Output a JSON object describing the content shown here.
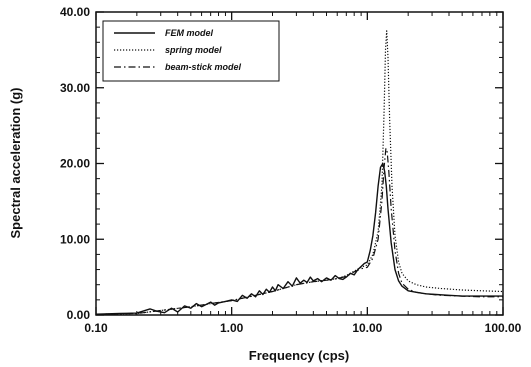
{
  "chart_data": {
    "type": "line",
    "title": "",
    "xlabel": "Frequency (cps)",
    "ylabel": "Spectral acceleration (g)",
    "xscale": "log",
    "xlim": [
      0.1,
      100
    ],
    "ylim": [
      0,
      40
    ],
    "x_ticks": [
      {
        "value": 0.1,
        "label": "0.10"
      },
      {
        "value": 1,
        "label": "1.00"
      },
      {
        "value": 10,
        "label": "10.00"
      },
      {
        "value": 100,
        "label": "100.00"
      }
    ],
    "y_ticks": [
      {
        "value": 0,
        "label": "0.00"
      },
      {
        "value": 10,
        "label": "10.00"
      },
      {
        "value": 20,
        "label": "20.00"
      },
      {
        "value": 30,
        "label": "30.00"
      },
      {
        "value": 40,
        "label": "40.00"
      }
    ],
    "grid": false,
    "legend_position": "top-left",
    "series": [
      {
        "name": "FEM model",
        "style": "solid",
        "color": "#111111",
        "x": [
          0.1,
          0.15,
          0.2,
          0.25,
          0.28,
          0.32,
          0.36,
          0.4,
          0.45,
          0.5,
          0.55,
          0.6,
          0.65,
          0.7,
          0.75,
          0.8,
          0.9,
          1.0,
          1.1,
          1.2,
          1.3,
          1.4,
          1.5,
          1.6,
          1.7,
          1.8,
          1.9,
          2.0,
          2.1,
          2.2,
          2.4,
          2.6,
          2.8,
          3.0,
          3.2,
          3.4,
          3.6,
          3.8,
          4.0,
          4.3,
          4.6,
          5.0,
          5.4,
          5.8,
          6.2,
          6.6,
          7.0,
          7.5,
          8.0,
          8.5,
          9.0,
          9.5,
          10.0,
          10.5,
          11.0,
          11.5,
          12.0,
          12.5,
          13.0,
          13.4,
          13.8,
          14.2,
          15.0,
          16.0,
          17.0,
          18.0,
          20.0,
          23.0,
          27.0,
          32.0,
          40.0,
          50.0,
          65.0,
          80.0,
          100.0
        ],
        "values": [
          0.1,
          0.2,
          0.25,
          0.8,
          0.5,
          0.3,
          0.9,
          0.4,
          1.2,
          0.9,
          1.5,
          1.1,
          1.4,
          1.7,
          1.3,
          1.6,
          1.8,
          2.0,
          1.8,
          2.6,
          2.2,
          2.8,
          2.4,
          3.2,
          2.7,
          3.4,
          3.0,
          3.7,
          3.2,
          4.0,
          3.5,
          4.4,
          3.8,
          4.9,
          4.2,
          4.6,
          4.3,
          5.0,
          4.5,
          4.8,
          4.4,
          4.9,
          4.6,
          5.2,
          4.8,
          4.7,
          5.0,
          5.5,
          5.3,
          6.0,
          6.4,
          6.8,
          7.0,
          8.5,
          10.5,
          13.5,
          17.0,
          19.5,
          20.0,
          19.0,
          17.0,
          14.0,
          9.5,
          6.0,
          4.5,
          3.8,
          3.2,
          3.0,
          2.8,
          2.7,
          2.6,
          2.5,
          2.5,
          2.5,
          2.5
        ]
      },
      {
        "name": "spring model",
        "style": "dotted",
        "color": "#111111",
        "x": [
          0.1,
          0.2,
          0.3,
          0.5,
          0.7,
          1.0,
          1.5,
          2.0,
          3.0,
          4.0,
          5.0,
          6.0,
          7.0,
          8.0,
          9.0,
          10.0,
          11.0,
          12.0,
          12.8,
          13.3,
          13.6,
          13.9,
          14.2,
          14.6,
          15.2,
          16.0,
          17.0,
          18.0,
          20.0,
          23.0,
          27.0,
          35.0,
          50.0,
          70.0,
          100.0
        ],
        "values": [
          0.1,
          0.2,
          0.6,
          1.1,
          1.5,
          1.9,
          2.6,
          3.1,
          4.0,
          4.4,
          4.6,
          4.8,
          5.2,
          5.8,
          6.3,
          6.6,
          8.0,
          11.0,
          17.0,
          27.0,
          35.0,
          37.5,
          34.0,
          26.0,
          17.0,
          10.5,
          7.0,
          5.5,
          4.5,
          4.0,
          3.7,
          3.5,
          3.3,
          3.2,
          3.1
        ]
      },
      {
        "name": "beam-stick model",
        "style": "dashdot",
        "color": "#111111",
        "x": [
          0.1,
          0.2,
          0.3,
          0.5,
          0.7,
          1.0,
          1.5,
          2.0,
          3.0,
          4.0,
          5.0,
          6.0,
          7.0,
          8.0,
          9.0,
          10.0,
          11.0,
          12.0,
          12.8,
          13.3,
          13.7,
          14.0,
          14.4,
          15.0,
          16.0,
          17.0,
          18.0,
          20.0,
          23.0,
          27.0,
          35.0,
          50.0,
          70.0,
          100.0
        ],
        "values": [
          0.1,
          0.2,
          0.6,
          1.1,
          1.5,
          1.9,
          2.6,
          3.1,
          4.0,
          4.4,
          4.6,
          4.8,
          5.1,
          5.7,
          6.1,
          6.3,
          7.5,
          10.0,
          15.0,
          19.5,
          22.0,
          21.5,
          19.0,
          14.0,
          8.5,
          5.5,
          4.2,
          3.4,
          3.0,
          2.8,
          2.6,
          2.5,
          2.4,
          2.4
        ]
      }
    ]
  }
}
